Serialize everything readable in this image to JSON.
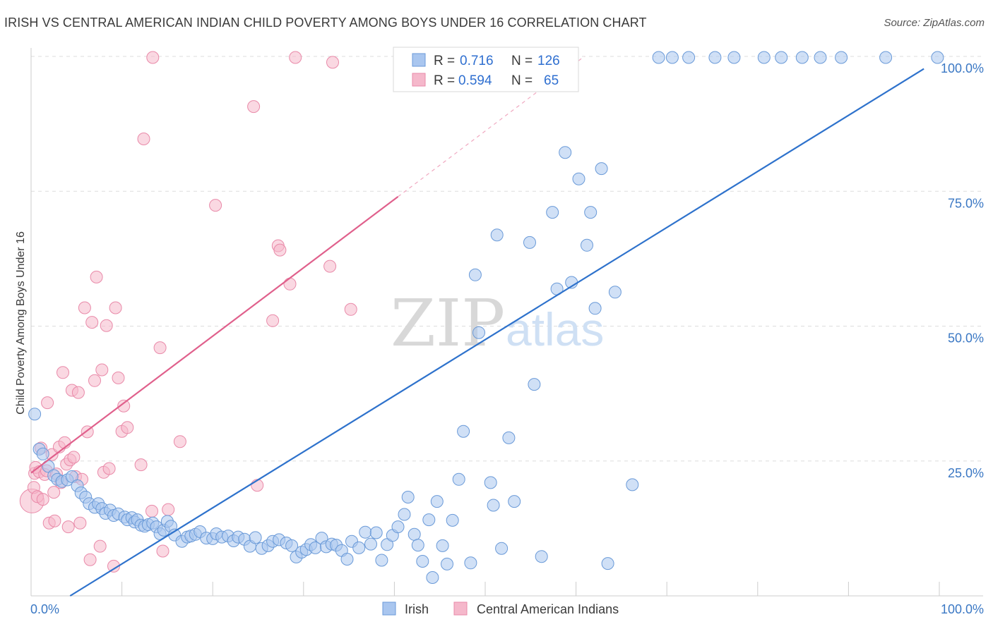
{
  "header": {
    "title": "IRISH VS CENTRAL AMERICAN INDIAN CHILD POVERTY AMONG BOYS UNDER 16 CORRELATION CHART",
    "source": "Source: ZipAtlas.com"
  },
  "watermark": {
    "zip": "ZIP",
    "atlas": "atlas"
  },
  "colors": {
    "irish_fill": "#a9c6ef",
    "irish_stroke": "#6a9ad8",
    "irish_line": "#2e72cc",
    "cai_fill": "#f5b8cb",
    "cai_stroke": "#e98aa9",
    "cai_line": "#e0608c",
    "tick_text": "#3b78c4",
    "grid": "#dddddd"
  },
  "legend": {
    "r_label": "R =",
    "n_label": "N =",
    "rows": [
      {
        "series": "Irish",
        "r": "0.716",
        "n": "126"
      },
      {
        "series": "Central American Indians",
        "r": "0.594",
        "n": "65"
      }
    ]
  },
  "bottom_legend": [
    "Irish",
    "Central American Indians"
  ],
  "chart_data": {
    "type": "scatter",
    "title": "IRISH VS CENTRAL AMERICAN INDIAN CHILD POVERTY AMONG BOYS UNDER 16 CORRELATION CHART",
    "xlabel": "",
    "ylabel": "Child Poverty Among Boys Under 16",
    "xlim": [
      0,
      100
    ],
    "ylim": [
      0,
      100
    ],
    "x_tick_labels": [
      "0.0%",
      "100.0%"
    ],
    "y_tick_labels": [
      "25.0%",
      "50.0%",
      "75.0%",
      "100.0%"
    ],
    "y_ticks": [
      25,
      50,
      75,
      100
    ],
    "grid": true,
    "legend_position": "top-center",
    "series": [
      {
        "name": "Irish",
        "trendline": {
          "x": [
            4.3,
            98.3
          ],
          "y": [
            0,
            97.7
          ]
        },
        "points": [
          [
            0.4,
            33.7
          ],
          [
            0.9,
            27.2
          ],
          [
            1.3,
            26.3
          ],
          [
            1.9,
            24
          ],
          [
            2.5,
            22.3
          ],
          [
            2.9,
            21.6
          ],
          [
            3.4,
            21.2
          ],
          [
            4,
            21.5
          ],
          [
            4.5,
            22.1
          ],
          [
            5.1,
            20.4
          ],
          [
            5.5,
            19.1
          ],
          [
            6,
            18.3
          ],
          [
            6.4,
            17.1
          ],
          [
            7,
            16.4
          ],
          [
            7.4,
            17.1
          ],
          [
            7.8,
            16.2
          ],
          [
            8.2,
            15.3
          ],
          [
            8.7,
            15.9
          ],
          [
            9.1,
            14.9
          ],
          [
            9.6,
            15.2
          ],
          [
            10.3,
            14.6
          ],
          [
            10.6,
            14.1
          ],
          [
            11.1,
            14.5
          ],
          [
            11.4,
            13.7
          ],
          [
            11.7,
            14.1
          ],
          [
            12.1,
            13.1
          ],
          [
            12.5,
            12.9
          ],
          [
            12.9,
            13.2
          ],
          [
            13.4,
            13.5
          ],
          [
            13.8,
            12.8
          ],
          [
            14.2,
            11.5
          ],
          [
            14.6,
            12.2
          ],
          [
            15,
            13.8
          ],
          [
            15.4,
            12.9
          ],
          [
            15.8,
            11.3
          ],
          [
            16.6,
            10.1
          ],
          [
            17.2,
            10.9
          ],
          [
            17.6,
            11.1
          ],
          [
            18.1,
            11.4
          ],
          [
            18.6,
            11.9
          ],
          [
            19.3,
            10.7
          ],
          [
            20,
            10.6
          ],
          [
            20.4,
            11.5
          ],
          [
            21,
            10.9
          ],
          [
            21.7,
            11.1
          ],
          [
            22.3,
            10.2
          ],
          [
            22.8,
            10.9
          ],
          [
            23.5,
            10.5
          ],
          [
            24.1,
            9.2
          ],
          [
            24.7,
            10.8
          ],
          [
            25.4,
            8.8
          ],
          [
            26.1,
            9.3
          ],
          [
            26.6,
            10.1
          ],
          [
            27.3,
            10.4
          ],
          [
            28.1,
            9.8
          ],
          [
            28.7,
            9.3
          ],
          [
            29.2,
            7.2
          ],
          [
            29.8,
            8.1
          ],
          [
            30.3,
            8.6
          ],
          [
            30.8,
            9.5
          ],
          [
            31.3,
            8.9
          ],
          [
            32,
            10.7
          ],
          [
            32.5,
            9.1
          ],
          [
            33.1,
            9.6
          ],
          [
            33.6,
            9.4
          ],
          [
            34.2,
            8.4
          ],
          [
            34.8,
            6.8
          ],
          [
            35.3,
            10.1
          ],
          [
            36.1,
            8.9
          ],
          [
            36.8,
            11.8
          ],
          [
            37.4,
            9.6
          ],
          [
            38,
            11.7
          ],
          [
            38.6,
            6.6
          ],
          [
            39.2,
            9.5
          ],
          [
            39.8,
            11.2
          ],
          [
            40.4,
            12.8
          ],
          [
            41.1,
            15.1
          ],
          [
            41.5,
            18.3
          ],
          [
            42.2,
            11.4
          ],
          [
            42.6,
            9.4
          ],
          [
            43.1,
            6.4
          ],
          [
            43.8,
            14.1
          ],
          [
            44.2,
            3.4
          ],
          [
            44.7,
            17.5
          ],
          [
            45.3,
            9.3
          ],
          [
            45.8,
            5.9
          ],
          [
            46.4,
            14
          ],
          [
            47.1,
            21.6
          ],
          [
            47.6,
            30.5
          ],
          [
            48.4,
            6.1
          ],
          [
            48.9,
            59.5
          ],
          [
            49.3,
            48.8
          ],
          [
            50.6,
            21
          ],
          [
            50.9,
            16.8
          ],
          [
            51.3,
            66.9
          ],
          [
            51.8,
            8.8
          ],
          [
            52.6,
            29.3
          ],
          [
            53.2,
            17.5
          ],
          [
            53.9,
            97.3
          ],
          [
            54.9,
            65.5
          ],
          [
            55.4,
            39.2
          ],
          [
            56.2,
            7.3
          ],
          [
            57.4,
            71.1
          ],
          [
            57.9,
            56.9
          ],
          [
            58.8,
            82.2
          ],
          [
            59.5,
            58.1
          ],
          [
            60.3,
            77.3
          ],
          [
            61.2,
            65
          ],
          [
            61.6,
            71.1
          ],
          [
            62.1,
            53.3
          ],
          [
            62.8,
            79.2
          ],
          [
            63.5,
            6
          ],
          [
            64.3,
            56.3
          ],
          [
            66.2,
            20.6
          ],
          [
            69.1,
            99.8
          ],
          [
            70.6,
            99.8
          ],
          [
            72.4,
            99.8
          ],
          [
            75.3,
            99.8
          ],
          [
            77.4,
            99.8
          ],
          [
            80.7,
            99.8
          ],
          [
            82.6,
            99.8
          ],
          [
            84.9,
            99.8
          ],
          [
            86.9,
            99.8
          ],
          [
            89.2,
            99.8
          ],
          [
            94.1,
            99.8
          ],
          [
            99.8,
            99.8
          ]
        ]
      },
      {
        "name": "Central American Indians",
        "trendline": {
          "x": [
            0,
            40.4
          ],
          "y": [
            22.8,
            74
          ]
        },
        "points": [
          [
            0.1,
            17.6
          ],
          [
            0.3,
            20.1
          ],
          [
            0.4,
            22.7
          ],
          [
            0.5,
            23.8
          ],
          [
            0.7,
            18.4
          ],
          [
            0.9,
            23
          ],
          [
            1.1,
            27.4
          ],
          [
            1.3,
            17.9
          ],
          [
            1.5,
            22.5
          ],
          [
            1.7,
            23.2
          ],
          [
            1.8,
            35.8
          ],
          [
            2,
            13.5
          ],
          [
            2.3,
            26.2
          ],
          [
            2.5,
            19.2
          ],
          [
            2.6,
            13.9
          ],
          [
            2.8,
            22.6
          ],
          [
            3.1,
            27.6
          ],
          [
            3.3,
            21
          ],
          [
            3.5,
            41.4
          ],
          [
            3.7,
            28.4
          ],
          [
            3.9,
            24.4
          ],
          [
            4.1,
            12.8
          ],
          [
            4.3,
            25.2
          ],
          [
            4.5,
            38.1
          ],
          [
            4.7,
            25.7
          ],
          [
            4.9,
            22.1
          ],
          [
            5.2,
            37.7
          ],
          [
            5.4,
            13.5
          ],
          [
            5.6,
            21.6
          ],
          [
            5.9,
            53.4
          ],
          [
            6.2,
            30.4
          ],
          [
            6.5,
            6.7
          ],
          [
            6.7,
            50.7
          ],
          [
            7,
            39.9
          ],
          [
            7.2,
            59.1
          ],
          [
            7.6,
            9.2
          ],
          [
            7.8,
            41.9
          ],
          [
            8,
            22.9
          ],
          [
            8.3,
            50.1
          ],
          [
            8.6,
            23.6
          ],
          [
            9.1,
            5.5
          ],
          [
            9.3,
            53.4
          ],
          [
            9.6,
            40.4
          ],
          [
            10,
            30.5
          ],
          [
            10.2,
            35.2
          ],
          [
            10.6,
            31.2
          ],
          [
            12.1,
            24.3
          ],
          [
            12.4,
            84.7
          ],
          [
            13.3,
            15.7
          ],
          [
            14.2,
            46
          ],
          [
            14.5,
            8.3
          ],
          [
            15.1,
            16
          ],
          [
            16.4,
            28.6
          ],
          [
            20.3,
            72.4
          ],
          [
            24.5,
            90.7
          ],
          [
            24.9,
            20.5
          ],
          [
            26.6,
            51
          ],
          [
            27.2,
            64.9
          ],
          [
            27.4,
            64.1
          ],
          [
            28.5,
            57.8
          ],
          [
            29.1,
            99.8
          ],
          [
            32.9,
            61.1
          ],
          [
            35.2,
            53.1
          ],
          [
            33.2,
            98.9
          ],
          [
            13.4,
            99.8
          ]
        ]
      }
    ]
  }
}
